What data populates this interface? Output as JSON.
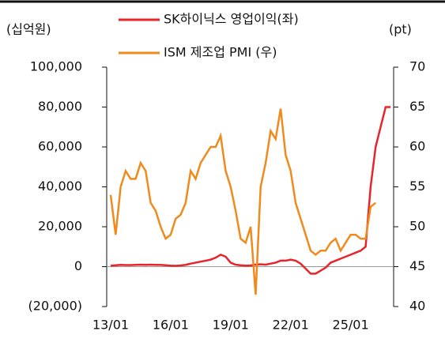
{
  "chart_data": {
    "type": "line",
    "left_unit": "(십억원)",
    "right_unit": "(pt)",
    "categories": [
      "13/01",
      "13/04",
      "13/07",
      "13/10",
      "14/01",
      "14/04",
      "14/07",
      "14/10",
      "15/01",
      "15/04",
      "15/07",
      "15/10",
      "16/01",
      "16/04",
      "16/07",
      "16/10",
      "17/01",
      "17/04",
      "17/07",
      "17/10",
      "18/01",
      "18/04",
      "18/07",
      "18/10",
      "19/01",
      "19/04",
      "19/07",
      "19/10",
      "20/01",
      "20/04",
      "20/07",
      "20/10",
      "21/01",
      "21/04",
      "21/07",
      "21/10",
      "22/01",
      "22/04",
      "22/07",
      "22/10",
      "23/01",
      "23/04",
      "23/07",
      "23/10",
      "24/01",
      "24/04",
      "24/07",
      "24/10",
      "25/01",
      "25/04",
      "25/07",
      "25/10",
      "26/01",
      "26/04",
      "26/07",
      "26/10",
      "27/01"
    ],
    "xticks": [
      "13/01",
      "16/01",
      "19/01",
      "22/01",
      "25/01"
    ],
    "series": [
      {
        "name": "SK하이닉스 영업이익(좌)",
        "color": "#e8232a",
        "axis": "y",
        "values": [
          500,
          700,
          900,
          800,
          800,
          900,
          1000,
          900,
          1000,
          900,
          900,
          700,
          500,
          400,
          600,
          900,
          1500,
          2000,
          2500,
          3000,
          3500,
          4500,
          6000,
          5000,
          2000,
          1000,
          700,
          500,
          600,
          1000,
          1200,
          1000,
          1500,
          2000,
          3000,
          3000,
          3500,
          3000,
          1500,
          -1000,
          -3500,
          -3500,
          -2000,
          -500,
          2000,
          3000,
          4000,
          5000,
          6000,
          7000,
          8000,
          10000,
          40000,
          60000,
          70000,
          80000,
          80000
        ]
      },
      {
        "name": "ISM 제조업 PMI (우)",
        "color": "#f08a1c",
        "axis": "y2",
        "values": [
          54,
          49,
          55,
          57,
          56,
          56,
          58,
          57,
          53,
          52,
          50,
          48.5,
          49,
          51,
          51.5,
          53,
          57,
          56,
          58,
          59,
          60,
          60,
          61.4,
          57,
          55,
          52,
          48.5,
          48,
          50,
          41.5,
          55,
          58,
          62,
          61,
          64.8,
          59,
          57,
          53,
          51,
          49,
          47,
          46.5,
          47,
          47,
          48,
          48.5,
          47,
          48,
          49,
          49,
          48.5,
          48.5,
          52.5,
          53,
          null,
          null,
          null
        ]
      }
    ],
    "ylim": [
      -20000,
      100000
    ],
    "yticks": [
      {
        "value": -20000,
        "label": "(20,000)"
      },
      0,
      {
        "value": 20000,
        "label": "20,000"
      },
      {
        "value": 40000,
        "label": "40,000"
      },
      {
        "value": 60000,
        "label": "60,000"
      },
      {
        "value": 80000,
        "label": "80,000"
      },
      {
        "value": 100000,
        "label": "100,000"
      }
    ],
    "y2lim": [
      40,
      70
    ],
    "y2ticks": [
      40,
      45,
      50,
      55,
      60,
      65,
      70
    ]
  }
}
